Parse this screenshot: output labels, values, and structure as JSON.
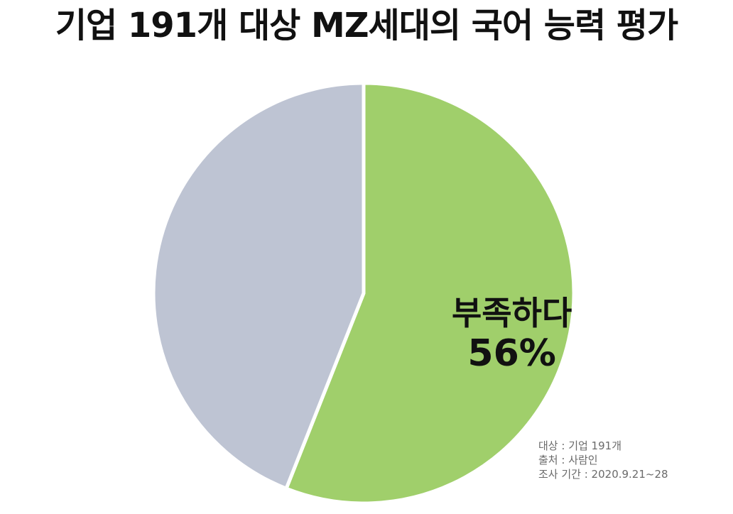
{
  "title": "기업 191개 대상 MZ세대의 국어 능력 평가",
  "chart_data": {
    "type": "pie",
    "title": "기업 191개 대상 MZ세대의 국어 능력 평가",
    "slices": [
      {
        "label": "부족하다",
        "value": 56,
        "value_label": "56%",
        "color": "#a0cf6b",
        "labeled": true
      },
      {
        "label": "",
        "value": 44,
        "value_label": "",
        "color": "#bec4d3",
        "labeled": false
      }
    ],
    "start": "12 o'clock",
    "direction": "clockwise",
    "slice_border_color": "#ffffff"
  },
  "notes": {
    "target": "대상 : 기업 191개",
    "source": "출처 : 사람인",
    "period": "조사 기간 : 2020.9.21~28"
  }
}
